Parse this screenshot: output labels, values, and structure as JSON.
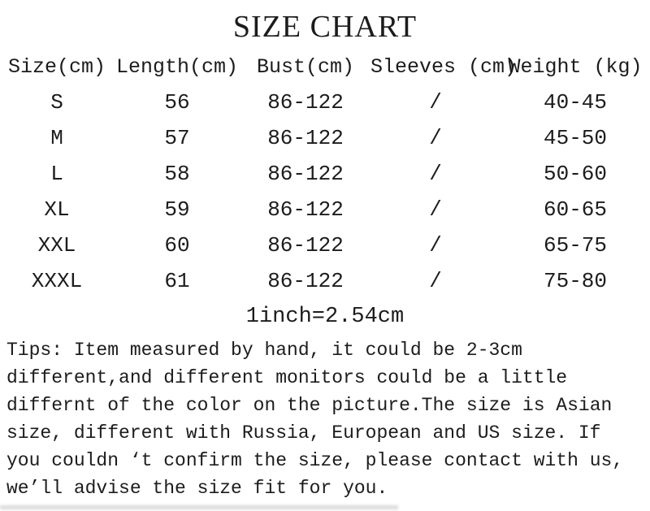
{
  "title": "SIZE CHART",
  "table": {
    "headers": [
      "Size(cm)",
      "Length(cm)",
      "Bust(cm)",
      "Sleeves (cm)",
      "Weight (kg)"
    ],
    "rows": [
      [
        "S",
        "56",
        "86-122",
        "/",
        "40-45"
      ],
      [
        "M",
        "57",
        "86-122",
        "/",
        "45-50"
      ],
      [
        "L",
        "58",
        "86-122",
        "/",
        "50-60"
      ],
      [
        "XL",
        "59",
        "86-122",
        "/",
        "60-65"
      ],
      [
        "XXL",
        "60",
        "86-122",
        "/",
        "65-75"
      ],
      [
        "XXXL",
        "61",
        "86-122",
        "/",
        "75-80"
      ]
    ]
  },
  "conversion_note": "1inch=2.54cm",
  "tips_lines": [
    "Tips: Item measured by hand, it could be 2-3cm",
    "different,and different monitors could be a little",
    "differnt of the color on the picture.The size is Asian",
    "size, different with Russia, European and US size. If",
    "you couldn ‘t confirm the size, please contact with us,",
    "we’ll advise the size fit for you."
  ],
  "colors": {
    "text": "#1c1c1c",
    "background": "#ffffff",
    "bottom_artifact": "#cfcfcf"
  }
}
